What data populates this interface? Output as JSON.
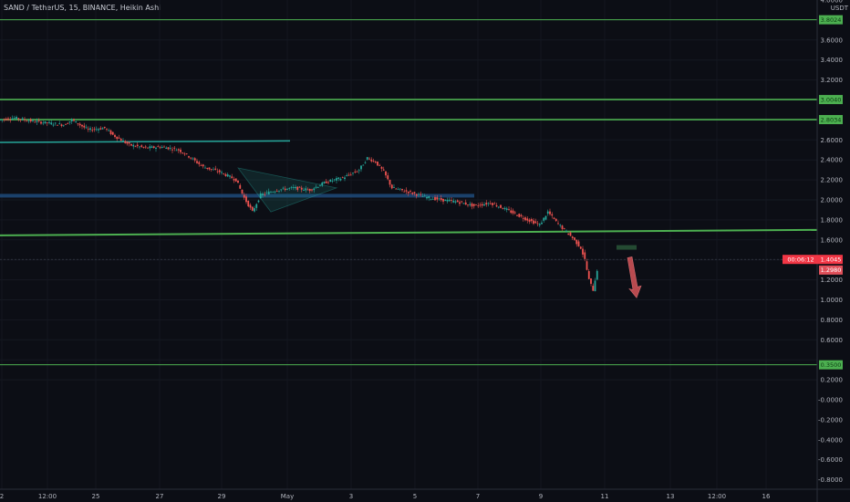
{
  "header": {
    "title": "SAND / TetherUS, 15, BINANCE, Heikin Ashi"
  },
  "colors": {
    "background": "#0c0e15",
    "up_candle": "#26a69a",
    "down_candle": "#ef5350",
    "level_line": "#4caf50",
    "trend_line": "#26a69a",
    "support_band": "#1e4a7a",
    "price_label": "#f23645",
    "arrow": "#b84a4f"
  },
  "chart_data": {
    "type": "line",
    "title": "SAND / TetherUS, 15, BINANCE, Heikin Ashi",
    "y_unit": "USDT",
    "ylim": [
      -0.85,
      4.0
    ],
    "y_ticks": [
      "4.0000",
      "3.6000",
      "3.4000",
      "3.2000",
      "2.8000",
      "2.6000",
      "2.4000",
      "2.2000",
      "2.0000",
      "1.8000",
      "1.6000",
      "1.2000",
      "1.0000",
      "0.8000",
      "0.6000",
      "0.2000",
      "-0.0000",
      "-0.2000",
      "-0.4000",
      "-0.6000",
      "-0.8000"
    ],
    "x_ticks": [
      "2",
      "12:00",
      "25",
      "27",
      "29",
      "May",
      "3",
      "5",
      "7",
      "9",
      "11",
      "13",
      "12:00",
      "16"
    ],
    "price_series": {
      "name": "SAND/USDT",
      "points": [
        [
          0,
          2.8
        ],
        [
          4,
          2.82
        ],
        [
          8,
          2.79
        ],
        [
          12,
          2.77
        ],
        [
          16,
          2.75
        ],
        [
          18,
          2.8
        ],
        [
          22,
          2.7
        ],
        [
          26,
          2.72
        ],
        [
          28,
          2.65
        ],
        [
          32,
          2.55
        ],
        [
          36,
          2.52
        ],
        [
          40,
          2.53
        ],
        [
          44,
          2.5
        ],
        [
          46,
          2.45
        ],
        [
          50,
          2.33
        ],
        [
          54,
          2.28
        ],
        [
          58,
          2.2
        ],
        [
          60,
          2.02
        ],
        [
          62,
          1.88
        ],
        [
          64,
          2.05
        ],
        [
          68,
          2.1
        ],
        [
          72,
          2.12
        ],
        [
          76,
          2.1
        ],
        [
          80,
          2.18
        ],
        [
          84,
          2.22
        ],
        [
          88,
          2.3
        ],
        [
          90,
          2.42
        ],
        [
          92,
          2.38
        ],
        [
          94,
          2.28
        ],
        [
          96,
          2.12
        ],
        [
          100,
          2.08
        ],
        [
          104,
          2.03
        ],
        [
          108,
          2.0
        ],
        [
          112,
          1.98
        ],
        [
          116,
          1.94
        ],
        [
          120,
          1.97
        ],
        [
          124,
          1.9
        ],
        [
          128,
          1.82
        ],
        [
          132,
          1.75
        ],
        [
          134,
          1.88
        ],
        [
          136,
          1.78
        ],
        [
          138,
          1.7
        ],
        [
          140,
          1.62
        ],
        [
          142,
          1.52
        ],
        [
          143,
          1.4
        ],
        [
          144,
          1.2
        ],
        [
          145,
          1.1
        ],
        [
          146,
          1.3
        ]
      ],
      "x_range": [
        0,
        200
      ]
    },
    "levels": [
      {
        "price": 3.8024,
        "label": "3.8024"
      },
      {
        "price": 3.004,
        "label": "3.0040"
      },
      {
        "price": 2.8034,
        "label": "2.8034"
      },
      {
        "price": 0.35,
        "label": "0.3500"
      }
    ],
    "current_price": {
      "price": 1.4045,
      "label": "1.4045",
      "countdown": "00:06:12"
    },
    "secondary_label": "1.2980"
  }
}
